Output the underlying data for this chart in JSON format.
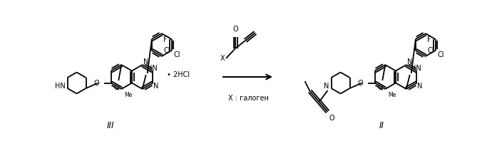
{
  "background_color": "#ffffff",
  "fig_width": 6.97,
  "fig_height": 1.98,
  "dpi": 100,
  "label_III": "III",
  "label_II": "II",
  "label_2HCl": "• 2HCl",
  "label_X_halogen": "X : галоген"
}
